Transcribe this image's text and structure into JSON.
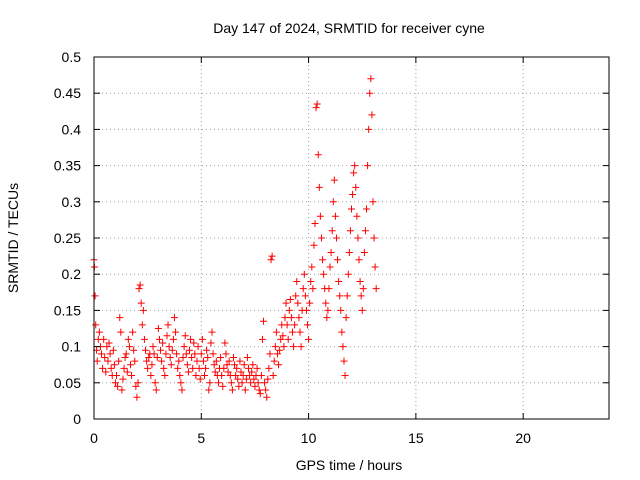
{
  "chart_data": {
    "type": "scatter",
    "title": "Day 147 of 2024, SRMTID for receiver cyne",
    "xlabel": "GPS time / hours",
    "ylabel": "SRMTID / TECUs",
    "xlim": [
      0,
      24
    ],
    "ylim": [
      0,
      0.5
    ],
    "xticks": [
      0,
      5,
      10,
      15,
      20
    ],
    "xtick_labels": [
      "0",
      "5",
      "10",
      "15",
      "20"
    ],
    "yticks": [
      0,
      0.05,
      0.1,
      0.15,
      0.2,
      0.25,
      0.3,
      0.35,
      0.4,
      0.45,
      0.5
    ],
    "ytick_labels": [
      "0",
      "0.05",
      "0.1",
      "0.15",
      "0.2",
      "0.25",
      "0.3",
      "0.35",
      "0.4",
      "0.45",
      "0.5"
    ],
    "grid": true,
    "marker": "+",
    "color": "#ff0000",
    "series": [
      {
        "name": "SRMTID",
        "points": [
          [
            0.0,
            0.22
          ],
          [
            0.02,
            0.21
          ],
          [
            0.05,
            0.17
          ],
          [
            0.08,
            0.13
          ],
          [
            0.12,
            0.095
          ],
          [
            0.15,
            0.08
          ],
          [
            0.2,
            0.11
          ],
          [
            0.25,
            0.12
          ],
          [
            0.3,
            0.1
          ],
          [
            0.35,
            0.09
          ],
          [
            0.4,
            0.07
          ],
          [
            0.45,
            0.11
          ],
          [
            0.5,
            0.085
          ],
          [
            0.55,
            0.065
          ],
          [
            0.6,
            0.1
          ],
          [
            0.65,
            0.08
          ],
          [
            0.7,
            0.105
          ],
          [
            0.75,
            0.09
          ],
          [
            0.8,
            0.07
          ],
          [
            0.85,
            0.06
          ],
          [
            0.9,
            0.095
          ],
          [
            0.95,
            0.075
          ],
          [
            1.0,
            0.05
          ],
          [
            1.05,
            0.06
          ],
          [
            1.1,
            0.045
          ],
          [
            1.15,
            0.08
          ],
          [
            1.2,
            0.14
          ],
          [
            1.25,
            0.12
          ],
          [
            1.3,
            0.04
          ],
          [
            1.35,
            0.055
          ],
          [
            1.4,
            0.07
          ],
          [
            1.45,
            0.085
          ],
          [
            1.5,
            0.09
          ],
          [
            1.55,
            0.065
          ],
          [
            1.6,
            0.11
          ],
          [
            1.65,
            0.1
          ],
          [
            1.7,
            0.075
          ],
          [
            1.75,
            0.06
          ],
          [
            1.8,
            0.12
          ],
          [
            1.85,
            0.095
          ],
          [
            1.9,
            0.08
          ],
          [
            1.95,
            0.045
          ],
          [
            2.0,
            0.03
          ],
          [
            2.05,
            0.05
          ],
          [
            2.1,
            0.18
          ],
          [
            2.15,
            0.185
          ],
          [
            2.2,
            0.16
          ],
          [
            2.25,
            0.13
          ],
          [
            2.3,
            0.15
          ],
          [
            2.35,
            0.11
          ],
          [
            2.4,
            0.095
          ],
          [
            2.45,
            0.08
          ],
          [
            2.5,
            0.07
          ],
          [
            2.55,
            0.085
          ],
          [
            2.6,
            0.09
          ],
          [
            2.65,
            0.06
          ],
          [
            2.7,
            0.075
          ],
          [
            2.75,
            0.1
          ],
          [
            2.8,
            0.09
          ],
          [
            2.85,
            0.05
          ],
          [
            2.9,
            0.04
          ],
          [
            2.95,
            0.085
          ],
          [
            3.0,
            0.125
          ],
          [
            3.05,
            0.11
          ],
          [
            3.1,
            0.095
          ],
          [
            3.15,
            0.08
          ],
          [
            3.2,
            0.105
          ],
          [
            3.25,
            0.07
          ],
          [
            3.3,
            0.06
          ],
          [
            3.35,
            0.09
          ],
          [
            3.4,
            0.115
          ],
          [
            3.45,
            0.13
          ],
          [
            3.5,
            0.1
          ],
          [
            3.55,
            0.085
          ],
          [
            3.6,
            0.075
          ],
          [
            3.65,
            0.095
          ],
          [
            3.7,
            0.11
          ],
          [
            3.75,
            0.14
          ],
          [
            3.8,
            0.12
          ],
          [
            3.85,
            0.09
          ],
          [
            3.9,
            0.07
          ],
          [
            3.95,
            0.08
          ],
          [
            4.0,
            0.06
          ],
          [
            4.05,
            0.05
          ],
          [
            4.1,
            0.04
          ],
          [
            4.15,
            0.085
          ],
          [
            4.2,
            0.1
          ],
          [
            4.25,
            0.115
          ],
          [
            4.3,
            0.09
          ],
          [
            4.35,
            0.075
          ],
          [
            4.4,
            0.065
          ],
          [
            4.45,
            0.095
          ],
          [
            4.5,
            0.11
          ],
          [
            4.55,
            0.085
          ],
          [
            4.6,
            0.07
          ],
          [
            4.65,
            0.105
          ],
          [
            4.7,
            0.09
          ],
          [
            4.75,
            0.06
          ],
          [
            4.8,
            0.08
          ],
          [
            4.85,
            0.1
          ],
          [
            4.9,
            0.07
          ],
          [
            4.95,
            0.055
          ],
          [
            5.0,
            0.09
          ],
          [
            5.05,
            0.11
          ],
          [
            5.1,
            0.08
          ],
          [
            5.15,
            0.06
          ],
          [
            5.2,
            0.07
          ],
          [
            5.25,
            0.095
          ],
          [
            5.3,
            0.085
          ],
          [
            5.35,
            0.04
          ],
          [
            5.4,
            0.05
          ],
          [
            5.45,
            0.105
          ],
          [
            5.5,
            0.12
          ],
          [
            5.55,
            0.09
          ],
          [
            5.6,
            0.075
          ],
          [
            5.65,
            0.065
          ],
          [
            5.7,
            0.08
          ],
          [
            5.75,
            0.06
          ],
          [
            5.8,
            0.05
          ],
          [
            5.85,
            0.07
          ],
          [
            5.9,
            0.085
          ],
          [
            5.95,
            0.06
          ],
          [
            6.0,
            0.045
          ],
          [
            6.05,
            0.07
          ],
          [
            6.1,
            0.105
          ],
          [
            6.15,
            0.09
          ],
          [
            6.2,
            0.075
          ],
          [
            6.25,
            0.065
          ],
          [
            6.3,
            0.08
          ],
          [
            6.35,
            0.06
          ],
          [
            6.4,
            0.05
          ],
          [
            6.45,
            0.04
          ],
          [
            6.5,
            0.085
          ],
          [
            6.55,
            0.075
          ],
          [
            6.6,
            0.06
          ],
          [
            6.65,
            0.07
          ],
          [
            6.7,
            0.055
          ],
          [
            6.75,
            0.045
          ],
          [
            6.8,
            0.08
          ],
          [
            6.85,
            0.065
          ],
          [
            6.9,
            0.05
          ],
          [
            6.95,
            0.06
          ],
          [
            7.0,
            0.075
          ],
          [
            7.05,
            0.04
          ],
          [
            7.1,
            0.055
          ],
          [
            7.15,
            0.085
          ],
          [
            7.2,
            0.07
          ],
          [
            7.25,
            0.06
          ],
          [
            7.3,
            0.05
          ],
          [
            7.35,
            0.065
          ],
          [
            7.4,
            0.075
          ],
          [
            7.45,
            0.055
          ],
          [
            7.5,
            0.045
          ],
          [
            7.55,
            0.06
          ],
          [
            7.6,
            0.07
          ],
          [
            7.65,
            0.05
          ],
          [
            7.7,
            0.04
          ],
          [
            7.75,
            0.035
          ],
          [
            7.8,
            0.06
          ],
          [
            7.85,
            0.11
          ],
          [
            7.9,
            0.135
          ],
          [
            7.95,
            0.05
          ],
          [
            8.0,
            0.04
          ],
          [
            8.05,
            0.03
          ],
          [
            8.1,
            0.055
          ],
          [
            8.15,
            0.07
          ],
          [
            8.2,
            0.09
          ],
          [
            8.25,
            0.22
          ],
          [
            8.3,
            0.225
          ],
          [
            8.35,
            0.06
          ],
          [
            8.4,
            0.08
          ],
          [
            8.45,
            0.1
          ],
          [
            8.5,
            0.12
          ],
          [
            8.55,
            0.09
          ],
          [
            8.6,
            0.075
          ],
          [
            8.65,
            0.095
          ],
          [
            8.7,
            0.11
          ],
          [
            8.75,
            0.13
          ],
          [
            8.8,
            0.115
          ],
          [
            8.85,
            0.1
          ],
          [
            8.9,
            0.14
          ],
          [
            8.95,
            0.16
          ],
          [
            9.0,
            0.13
          ],
          [
            9.05,
            0.11
          ],
          [
            9.1,
            0.15
          ],
          [
            9.15,
            0.165
          ],
          [
            9.2,
            0.14
          ],
          [
            9.25,
            0.12
          ],
          [
            9.3,
            0.1
          ],
          [
            9.35,
            0.13
          ],
          [
            9.4,
            0.17
          ],
          [
            9.45,
            0.19
          ],
          [
            9.5,
            0.16
          ],
          [
            9.55,
            0.14
          ],
          [
            9.6,
            0.12
          ],
          [
            9.65,
            0.1
          ],
          [
            9.7,
            0.15
          ],
          [
            9.75,
            0.18
          ],
          [
            9.8,
            0.2
          ],
          [
            9.85,
            0.17
          ],
          [
            9.9,
            0.15
          ],
          [
            9.95,
            0.13
          ],
          [
            10.0,
            0.11
          ],
          [
            10.05,
            0.16
          ],
          [
            10.1,
            0.19
          ],
          [
            10.15,
            0.21
          ],
          [
            10.2,
            0.18
          ],
          [
            10.25,
            0.24
          ],
          [
            10.3,
            0.27
          ],
          [
            10.35,
            0.43
          ],
          [
            10.4,
            0.435
          ],
          [
            10.45,
            0.365
          ],
          [
            10.5,
            0.32
          ],
          [
            10.55,
            0.28
          ],
          [
            10.6,
            0.25
          ],
          [
            10.65,
            0.22
          ],
          [
            10.7,
            0.2
          ],
          [
            10.75,
            0.18
          ],
          [
            10.8,
            0.16
          ],
          [
            10.85,
            0.14
          ],
          [
            10.9,
            0.15
          ],
          [
            10.95,
            0.18
          ],
          [
            11.0,
            0.21
          ],
          [
            11.05,
            0.23
          ],
          [
            11.1,
            0.26
          ],
          [
            11.15,
            0.3
          ],
          [
            11.2,
            0.33
          ],
          [
            11.25,
            0.28
          ],
          [
            11.3,
            0.25
          ],
          [
            11.35,
            0.22
          ],
          [
            11.4,
            0.19
          ],
          [
            11.45,
            0.17
          ],
          [
            11.5,
            0.15
          ],
          [
            11.55,
            0.12
          ],
          [
            11.6,
            0.1
          ],
          [
            11.65,
            0.08
          ],
          [
            11.7,
            0.06
          ],
          [
            11.75,
            0.14
          ],
          [
            11.8,
            0.17
          ],
          [
            11.85,
            0.2
          ],
          [
            11.9,
            0.23
          ],
          [
            11.95,
            0.26
          ],
          [
            12.0,
            0.29
          ],
          [
            12.05,
            0.31
          ],
          [
            12.1,
            0.34
          ],
          [
            12.15,
            0.35
          ],
          [
            12.2,
            0.32
          ],
          [
            12.25,
            0.28
          ],
          [
            12.3,
            0.25
          ],
          [
            12.35,
            0.22
          ],
          [
            12.4,
            0.19
          ],
          [
            12.45,
            0.17
          ],
          [
            12.5,
            0.15
          ],
          [
            12.55,
            0.18
          ],
          [
            12.6,
            0.23
          ],
          [
            12.65,
            0.26
          ],
          [
            12.7,
            0.29
          ],
          [
            12.75,
            0.35
          ],
          [
            12.8,
            0.4
          ],
          [
            12.85,
            0.45
          ],
          [
            12.9,
            0.47
          ],
          [
            12.95,
            0.42
          ],
          [
            13.0,
            0.3
          ],
          [
            13.05,
            0.25
          ],
          [
            13.1,
            0.21
          ],
          [
            13.15,
            0.18
          ]
        ]
      }
    ]
  }
}
